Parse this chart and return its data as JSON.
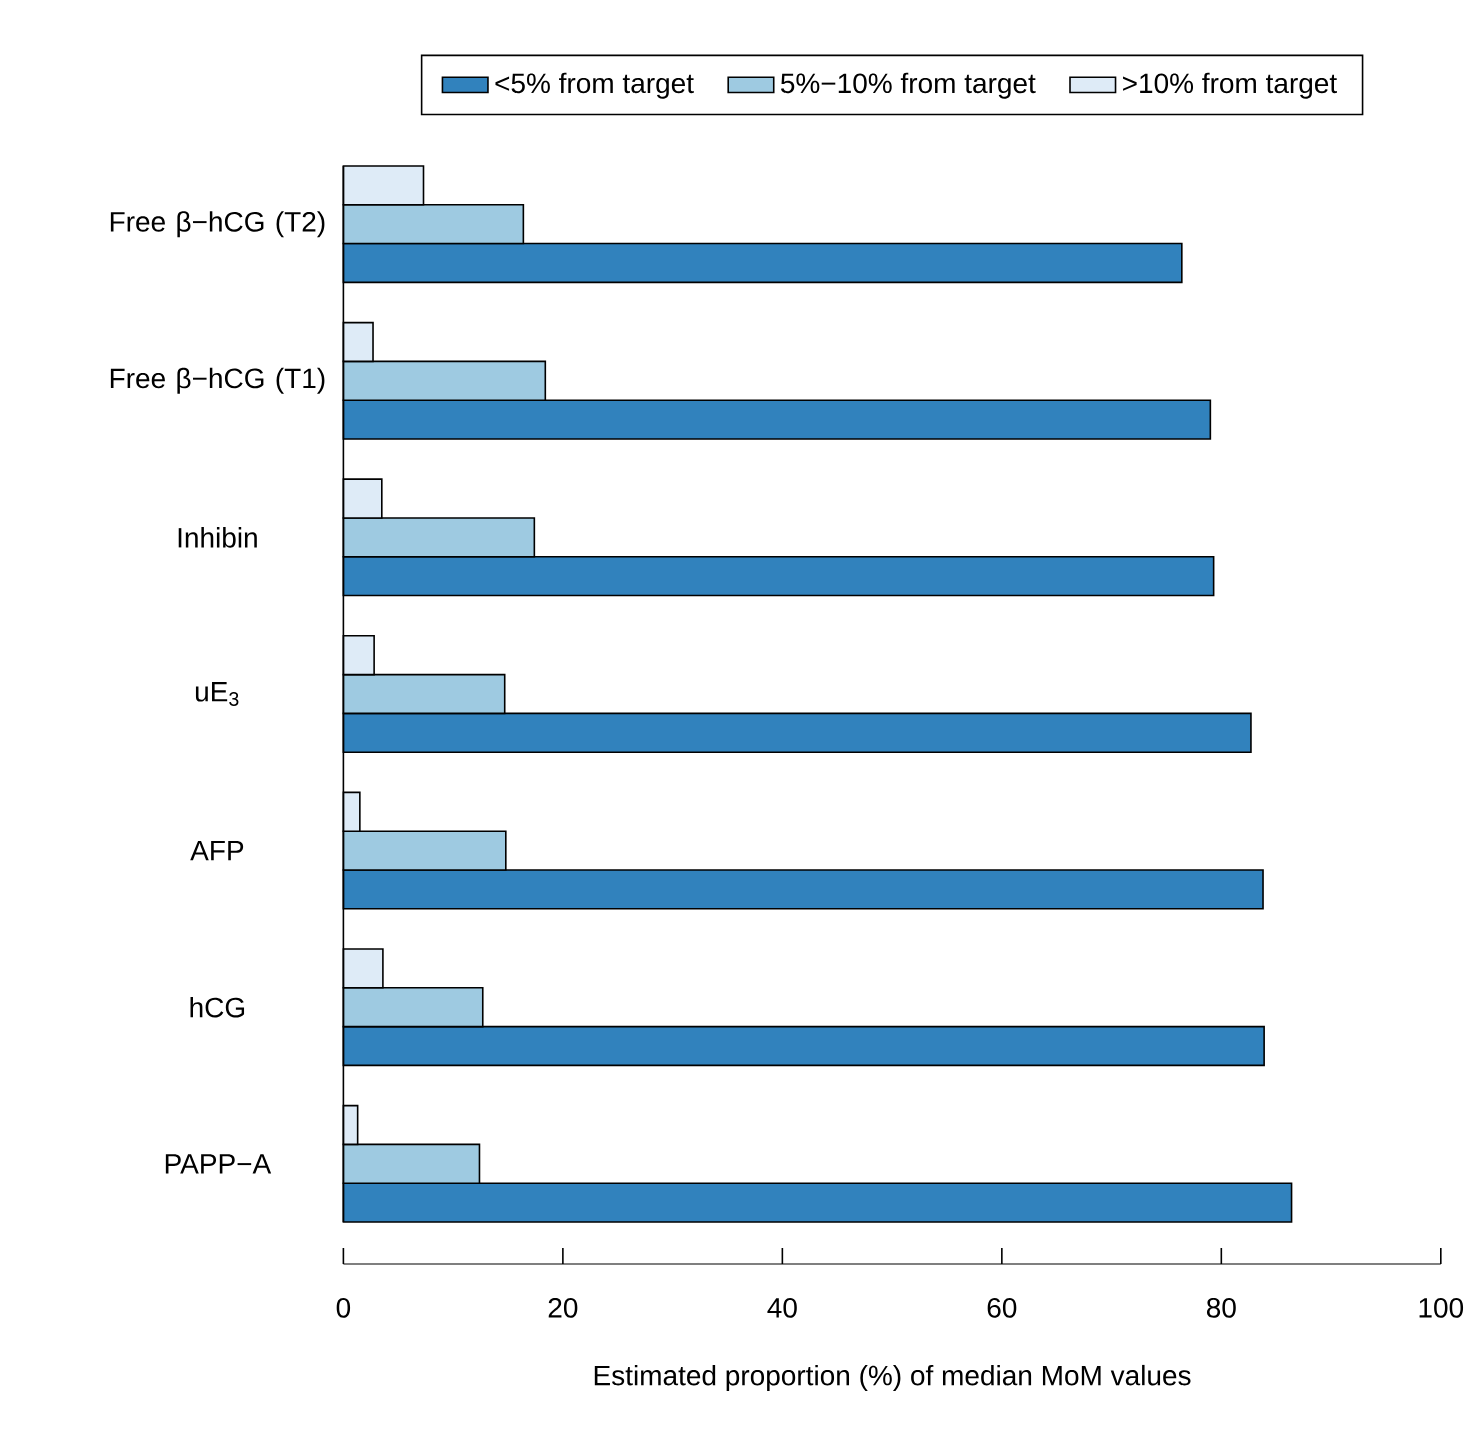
{
  "chart_data": {
    "type": "bar",
    "orientation": "horizontal",
    "xlabel": "Estimated proportion (%) of median MoM values",
    "categories": [
      "Free β−hCG (T2)",
      "Free β−hCG (T1)",
      "Inhibin",
      "uE$_{3}$",
      "AFP",
      "hCG",
      "PAPP−A"
    ],
    "series": [
      {
        "name": "<5% from target",
        "color": "#3182bd",
        "values": [
          76.4,
          79.0,
          79.3,
          82.7,
          83.8,
          83.9,
          86.4
        ]
      },
      {
        "name": "5%−10% from target",
        "color": "#9ecae1",
        "values": [
          16.4,
          18.4,
          17.4,
          14.7,
          14.8,
          12.7,
          12.4
        ]
      },
      {
        "name": ">10% from target",
        "color": "#deebf7",
        "values": [
          7.3,
          2.7,
          3.5,
          2.8,
          1.5,
          3.6,
          1.3
        ]
      }
    ],
    "xlim": [
      0,
      100
    ],
    "xticks": [
      0,
      20,
      40,
      60,
      80,
      100
    ],
    "legend": "top",
    "grid": false
  }
}
